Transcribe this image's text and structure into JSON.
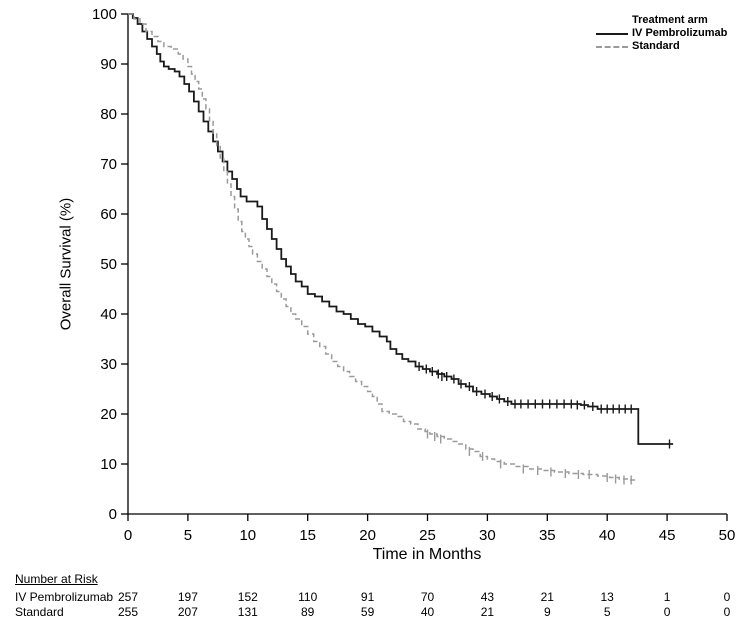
{
  "chart_data": {
    "type": "line",
    "subtype": "kaplan-meier-step",
    "title": "",
    "xlabel": "Time in Months",
    "ylabel": "Overall Survival (%)",
    "xlim": [
      0,
      50
    ],
    "ylim": [
      0,
      100
    ],
    "xticks": [
      0,
      5,
      10,
      15,
      20,
      25,
      30,
      35,
      40,
      45,
      50
    ],
    "yticks": [
      0,
      10,
      20,
      30,
      40,
      50,
      60,
      70,
      80,
      90,
      100
    ],
    "grid": false,
    "legend": {
      "title": "Treatment arm",
      "position": "top-right"
    },
    "axis_color": "#000000",
    "series": [
      {
        "name": "IV Pembrolizumab",
        "color": "#1a1a1a",
        "dash": "solid",
        "points": [
          [
            0,
            100
          ],
          [
            0.4,
            99.2
          ],
          [
            0.8,
            98
          ],
          [
            1.2,
            96.5
          ],
          [
            1.6,
            95
          ],
          [
            2,
            93.5
          ],
          [
            2.4,
            92
          ],
          [
            2.7,
            90.5
          ],
          [
            3,
            89.5
          ],
          [
            3.4,
            89
          ],
          [
            3.9,
            88.5
          ],
          [
            4.3,
            87.5
          ],
          [
            4.7,
            86
          ],
          [
            5.1,
            84.5
          ],
          [
            5.5,
            82.5
          ],
          [
            5.9,
            80.5
          ],
          [
            6.3,
            78.5
          ],
          [
            6.7,
            76.5
          ],
          [
            7.1,
            74.5
          ],
          [
            7.5,
            72.5
          ],
          [
            7.9,
            70.5
          ],
          [
            8.3,
            68.5
          ],
          [
            8.7,
            67
          ],
          [
            9.1,
            65
          ],
          [
            9.4,
            63.5
          ],
          [
            9.9,
            62.5
          ],
          [
            10.8,
            61.5
          ],
          [
            11.2,
            59
          ],
          [
            11.6,
            57
          ],
          [
            12,
            55
          ],
          [
            12.4,
            53
          ],
          [
            12.8,
            51
          ],
          [
            13.2,
            49.5
          ],
          [
            13.6,
            48
          ],
          [
            14,
            46.5
          ],
          [
            14.5,
            45.5
          ],
          [
            15,
            44
          ],
          [
            15.6,
            43.5
          ],
          [
            16.2,
            42.5
          ],
          [
            16.8,
            41.5
          ],
          [
            17.4,
            40.5
          ],
          [
            18,
            40
          ],
          [
            18.6,
            39
          ],
          [
            19.2,
            38
          ],
          [
            19.8,
            37.5
          ],
          [
            20.4,
            36.5
          ],
          [
            21,
            35.5
          ],
          [
            21.6,
            34.5
          ],
          [
            21.9,
            33
          ],
          [
            22.4,
            32
          ],
          [
            22.9,
            31
          ],
          [
            23.4,
            30.5
          ],
          [
            24,
            29.5
          ],
          [
            24.6,
            29
          ],
          [
            25.2,
            28.5
          ],
          [
            25.8,
            28
          ],
          [
            26.4,
            27.5
          ],
          [
            27,
            27
          ],
          [
            27.6,
            26
          ],
          [
            28.2,
            25.5
          ],
          [
            28.8,
            24.5
          ],
          [
            29.5,
            24
          ],
          [
            30.2,
            23.5
          ],
          [
            30.8,
            23
          ],
          [
            31.4,
            22.5
          ],
          [
            32,
            22
          ],
          [
            37.8,
            21.8
          ],
          [
            38.4,
            21.5
          ],
          [
            39.2,
            21
          ],
          [
            42.6,
            14
          ],
          [
            45.5,
            14
          ]
        ],
        "censors": [
          [
            24.3,
            29.5
          ],
          [
            24.9,
            29
          ],
          [
            25.4,
            28.5
          ],
          [
            25.9,
            28
          ],
          [
            26.2,
            27.5
          ],
          [
            26.6,
            27.5
          ],
          [
            27.2,
            27
          ],
          [
            27.8,
            26
          ],
          [
            28.5,
            25.5
          ],
          [
            29.1,
            24.5
          ],
          [
            29.8,
            24
          ],
          [
            30.4,
            23.5
          ],
          [
            31,
            23
          ],
          [
            31.7,
            22.5
          ],
          [
            32.3,
            22
          ],
          [
            32.8,
            22
          ],
          [
            33.4,
            22
          ],
          [
            34,
            22
          ],
          [
            34.6,
            22
          ],
          [
            35.2,
            22
          ],
          [
            35.8,
            22
          ],
          [
            36.4,
            22
          ],
          [
            37,
            22
          ],
          [
            37.5,
            21.8
          ],
          [
            38.1,
            21.8
          ],
          [
            38.8,
            21.5
          ],
          [
            39.5,
            21
          ],
          [
            40,
            21
          ],
          [
            40.5,
            21
          ],
          [
            41,
            21
          ],
          [
            41.5,
            21
          ],
          [
            42,
            21
          ],
          [
            45.2,
            14
          ]
        ]
      },
      {
        "name": "Standard",
        "color": "#9a9a9a",
        "dash": "dashed",
        "points": [
          [
            0,
            100
          ],
          [
            0.5,
            99
          ],
          [
            1,
            98
          ],
          [
            1.5,
            96.5
          ],
          [
            2,
            95.5
          ],
          [
            2.5,
            94.5
          ],
          [
            3,
            93.5
          ],
          [
            3.6,
            93
          ],
          [
            4.2,
            92
          ],
          [
            4.6,
            91
          ],
          [
            5,
            89.5
          ],
          [
            5.3,
            88
          ],
          [
            5.6,
            86.5
          ],
          [
            5.9,
            85
          ],
          [
            6.2,
            83
          ],
          [
            6.5,
            81
          ],
          [
            6.8,
            78.5
          ],
          [
            7.1,
            76
          ],
          [
            7.4,
            73.5
          ],
          [
            7.7,
            71
          ],
          [
            8,
            68.5
          ],
          [
            8.3,
            66
          ],
          [
            8.6,
            63.5
          ],
          [
            8.9,
            61
          ],
          [
            9.2,
            58.5
          ],
          [
            9.5,
            56.5
          ],
          [
            9.8,
            55
          ],
          [
            10.1,
            53.5
          ],
          [
            10.4,
            52
          ],
          [
            10.8,
            50.5
          ],
          [
            11.2,
            49
          ],
          [
            11.6,
            47.5
          ],
          [
            12,
            46
          ],
          [
            12.4,
            44.5
          ],
          [
            12.8,
            43
          ],
          [
            13.2,
            41.5
          ],
          [
            13.6,
            40
          ],
          [
            14,
            39
          ],
          [
            14.5,
            37.5
          ],
          [
            15,
            36
          ],
          [
            15.5,
            34.5
          ],
          [
            16,
            33.5
          ],
          [
            16.5,
            32
          ],
          [
            17,
            30.5
          ],
          [
            17.5,
            29.5
          ],
          [
            18,
            28.5
          ],
          [
            18.5,
            27.5
          ],
          [
            19,
            26.5
          ],
          [
            19.5,
            25.5
          ],
          [
            20,
            24.5
          ],
          [
            20.4,
            23.5
          ],
          [
            20.8,
            22
          ],
          [
            21.2,
            20.5
          ],
          [
            21.8,
            20
          ],
          [
            22.4,
            19.5
          ],
          [
            23,
            18.5
          ],
          [
            23.6,
            18
          ],
          [
            24.2,
            17
          ],
          [
            24.8,
            16.5
          ],
          [
            25.2,
            16
          ],
          [
            25.8,
            15.5
          ],
          [
            26.4,
            15
          ],
          [
            27,
            14.5
          ],
          [
            27.6,
            14
          ],
          [
            28.2,
            13
          ],
          [
            28.8,
            12.5
          ],
          [
            29.4,
            11.5
          ],
          [
            30,
            11
          ],
          [
            30.6,
            10.5
          ],
          [
            31.4,
            10
          ],
          [
            32.4,
            9.5
          ],
          [
            33.4,
            9
          ],
          [
            34.5,
            8.7
          ],
          [
            35.6,
            8.4
          ],
          [
            36.8,
            8.1
          ],
          [
            38,
            7.9
          ],
          [
            39.2,
            7.6
          ],
          [
            40.2,
            7.3
          ],
          [
            41,
            7
          ],
          [
            41.8,
            6.8
          ],
          [
            42.5,
            6.8
          ]
        ],
        "censors": [
          [
            25,
            16
          ],
          [
            25.6,
            15.5
          ],
          [
            26.1,
            15
          ],
          [
            28.5,
            12.5
          ],
          [
            29.6,
            11.5
          ],
          [
            31.1,
            10
          ],
          [
            33,
            9
          ],
          [
            34.2,
            8.7
          ],
          [
            35.3,
            8.4
          ],
          [
            36.5,
            8.1
          ],
          [
            37.6,
            7.9
          ],
          [
            38.5,
            7.9
          ],
          [
            40,
            7.3
          ],
          [
            40.7,
            7
          ],
          [
            41.4,
            6.8
          ],
          [
            42,
            6.8
          ]
        ]
      }
    ]
  },
  "risk_table": {
    "header": "Number at Risk",
    "times": [
      0,
      5,
      10,
      15,
      20,
      25,
      30,
      35,
      40,
      45,
      50
    ],
    "rows": [
      {
        "label": "IV Pembrolizumab",
        "counts": [
          257,
          197,
          152,
          110,
          91,
          70,
          43,
          21,
          13,
          1,
          0
        ]
      },
      {
        "label": "Standard",
        "counts": [
          255,
          207,
          131,
          89,
          59,
          40,
          21,
          9,
          5,
          0,
          0
        ]
      }
    ]
  }
}
